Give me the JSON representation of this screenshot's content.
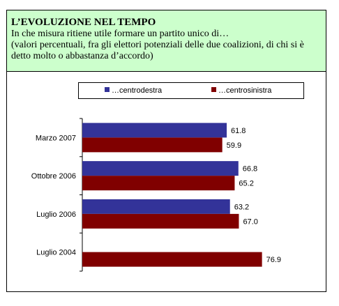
{
  "header": {
    "title": "L’EVOLUZIONE NEL TEMPO",
    "subtitle": "In che misura ritiene utile formare un partito unico di…",
    "note": "(valori percentuali, fra gli elettori potenziali delle due coalizioni, di chi si è detto molto o abbastanza d’accordo)"
  },
  "chart_data": {
    "type": "bar",
    "orientation": "horizontal",
    "categories": [
      "Marzo 2007",
      "Ottobre 2006",
      "Luglio 2006",
      "Luglio 2004"
    ],
    "series": [
      {
        "name": "…centrodestra",
        "color": "#333399",
        "values": [
          61.8,
          66.8,
          63.2,
          null
        ],
        "labels": [
          "61.8",
          "66.8",
          "63.2",
          ""
        ]
      },
      {
        "name": "…centrosinistra",
        "color": "#800000",
        "values": [
          59.9,
          65.2,
          67.0,
          76.9
        ],
        "labels": [
          "59.9",
          "65.2",
          "67.0",
          "76.9"
        ]
      }
    ],
    "xlim": [
      0,
      100
    ],
    "legend_position": "top",
    "grid": false
  }
}
